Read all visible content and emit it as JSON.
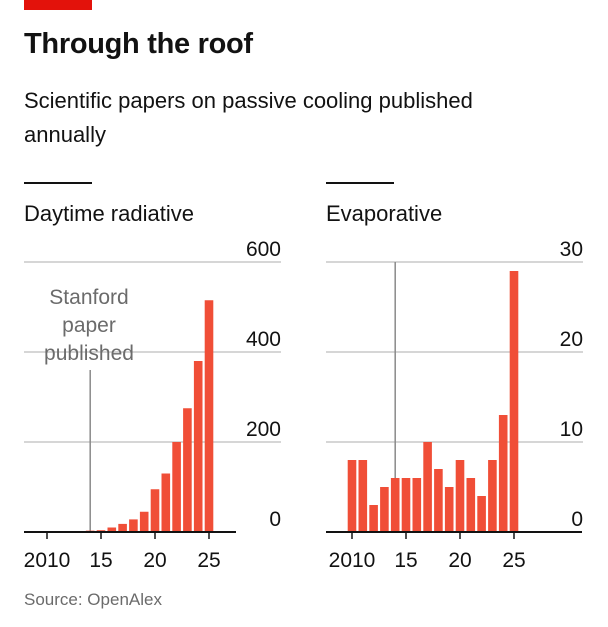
{
  "title": "Through the roof",
  "subtitle": "Scientific papers on passive cooling published annually",
  "source": "Source: OpenAlex",
  "colors": {
    "accent": "#e3120b",
    "bar": "#f04e37",
    "grid": "#bdbdbd",
    "annotation_line": "#8a8a8a"
  },
  "chart_data": [
    {
      "type": "bar",
      "title": "Daytime radiative",
      "x": [
        2009,
        2010,
        2011,
        2012,
        2013,
        2014,
        2015,
        2016,
        2017,
        2018,
        2019,
        2020,
        2021,
        2022,
        2023,
        2024,
        2025
      ],
      "values": [
        0,
        0,
        0,
        1,
        2,
        3,
        4,
        10,
        18,
        28,
        45,
        95,
        130,
        200,
        275,
        380,
        515
      ],
      "ylim": [
        0,
        600
      ],
      "yticks": [
        "600",
        "400",
        "200",
        "0"
      ],
      "ytick_values": [
        600,
        400,
        200,
        0
      ],
      "xticks": [
        "2010",
        "15",
        "20",
        "25"
      ],
      "xtick_values": [
        2010,
        2015,
        2020,
        2025
      ],
      "annotation": {
        "text": [
          "Stanford",
          "paper",
          "published"
        ],
        "x": 2014
      },
      "grid": true
    },
    {
      "type": "bar",
      "title": "Evaporative",
      "x": [
        2010,
        2011,
        2012,
        2013,
        2014,
        2015,
        2016,
        2017,
        2018,
        2019,
        2020,
        2021,
        2022,
        2023,
        2024,
        2025
      ],
      "values": [
        8,
        8,
        3,
        5,
        6,
        6,
        6,
        10,
        7,
        5,
        8,
        6,
        4,
        8,
        13,
        29
      ],
      "ylim": [
        0,
        30
      ],
      "yticks": [
        "30",
        "20",
        "10",
        "0"
      ],
      "ytick_values": [
        30,
        20,
        10,
        0
      ],
      "xticks": [
        "2010",
        "15",
        "20",
        "25"
      ],
      "xtick_values": [
        2010,
        2015,
        2020,
        2025
      ],
      "annotation": {
        "x": 2014
      },
      "grid": true
    }
  ]
}
